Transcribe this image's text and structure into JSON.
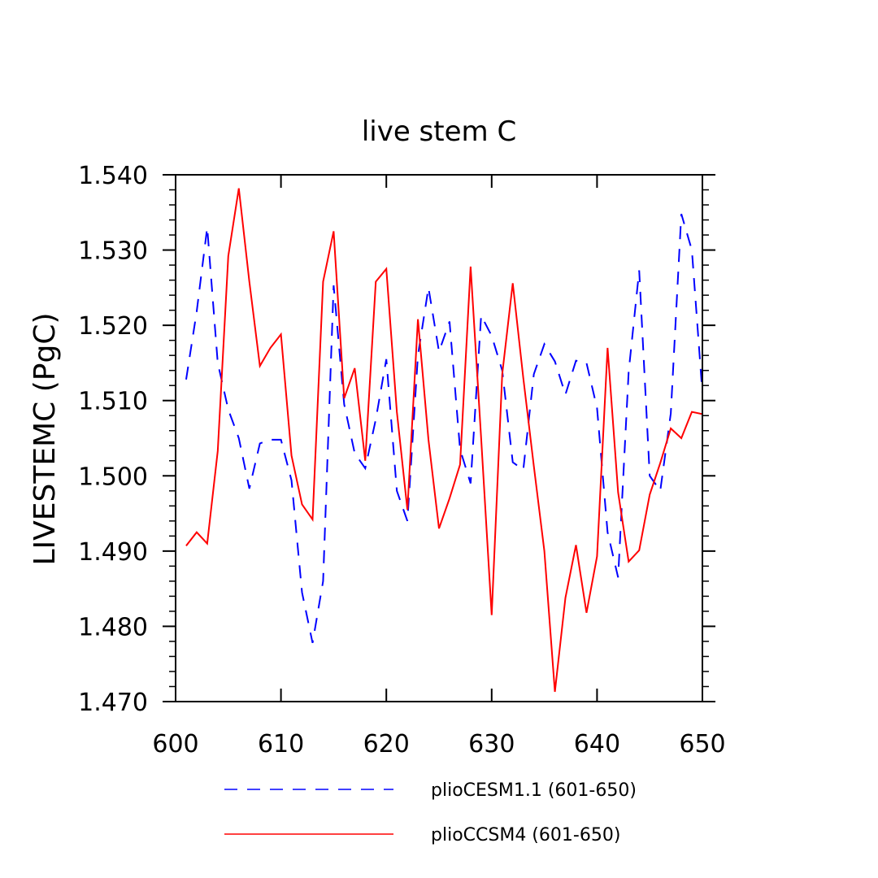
{
  "chart_data": {
    "type": "line",
    "title": "live stem C",
    "xlabel": "",
    "ylabel": "LIVESTEMC  (PgC)",
    "xlim": [
      600,
      650
    ],
    "ylim": [
      1.47,
      1.54
    ],
    "x_ticks": [
      "600",
      "610",
      "620",
      "630",
      "640",
      "650"
    ],
    "y_ticks": [
      "1.470",
      "1.480",
      "1.490",
      "1.500",
      "1.510",
      "1.520",
      "1.530",
      "1.540"
    ],
    "grid": false,
    "legend_position": "bottom",
    "x": [
      601,
      602,
      603,
      604,
      605,
      606,
      607,
      608,
      609,
      610,
      611,
      612,
      613,
      614,
      615,
      616,
      617,
      618,
      619,
      620,
      621,
      622,
      623,
      624,
      625,
      626,
      627,
      628,
      629,
      630,
      631,
      632,
      633,
      634,
      635,
      636,
      637,
      638,
      639,
      640,
      641,
      642,
      643,
      644,
      645,
      646,
      647,
      648,
      649,
      650
    ],
    "series": [
      {
        "name": "plioCESM1.1 (601-650)",
        "color": "#0000ff",
        "dash": "dashed",
        "values": [
          1.5128,
          1.5218,
          1.533,
          1.515,
          1.5088,
          1.505,
          1.4983,
          1.5043,
          1.5048,
          1.5048,
          1.4994,
          1.4845,
          1.4778,
          1.486,
          1.5253,
          1.5095,
          1.503,
          1.501,
          1.5075,
          1.5155,
          1.498,
          1.494,
          1.516,
          1.525,
          1.5165,
          1.5205,
          1.5035,
          1.499,
          1.5213,
          1.5186,
          1.514,
          1.5018,
          1.5008,
          1.5135,
          1.5175,
          1.5152,
          1.5108,
          1.5153,
          1.515,
          1.509,
          1.4925,
          1.4865,
          1.5138,
          1.5273,
          1.5,
          1.498,
          1.5083,
          1.5348,
          1.53,
          1.511
        ]
      },
      {
        "name": "plioCCSM4 (601-650)",
        "color": "#ff0000",
        "dash": "solid",
        "values": [
          1.4907,
          1.4925,
          1.491,
          1.5033,
          1.5292,
          1.5382,
          1.5258,
          1.5146,
          1.517,
          1.5188,
          1.5027,
          1.4962,
          1.4942,
          1.5258,
          1.5325,
          1.5103,
          1.5143,
          1.502,
          1.5258,
          1.5275,
          1.5085,
          1.4955,
          1.5208,
          1.5048,
          1.493,
          1.497,
          1.5015,
          1.5278,
          1.505,
          1.4815,
          1.5135,
          1.5256,
          1.513,
          1.5013,
          1.49,
          1.4713,
          1.4838,
          1.4908,
          1.4818,
          1.4893,
          1.517,
          1.4978,
          1.4886,
          1.4901,
          1.4975,
          1.5017,
          1.5063,
          1.505,
          1.5085,
          1.5082
        ]
      }
    ]
  }
}
